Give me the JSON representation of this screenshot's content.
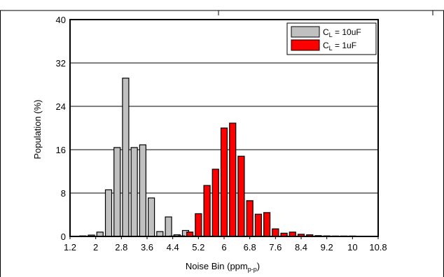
{
  "chart_data": {
    "type": "bar",
    "xlabel": "Noise Bin (ppm",
    "xlabel_sub": "p-p",
    "xlabel_close": ")",
    "ylabel": "Population (%)",
    "ylim": [
      0,
      40
    ],
    "yticks": [
      "0",
      "8",
      "16",
      "24",
      "32",
      "40"
    ],
    "xlim": [
      1.2,
      10.8
    ],
    "xticks": [
      "1.2",
      "2",
      "2.8",
      "3.6",
      "4.4",
      "5.2",
      "6",
      "6.8",
      "7.6",
      "8.4",
      "9.2",
      "10",
      "10.8"
    ],
    "grid": "horizontal",
    "legend_position": "top-right",
    "series": [
      {
        "name_main": "C",
        "name_sub": "L",
        "name_rest": " = 10uF",
        "color": "#c0c0c0",
        "x": [
          1.6,
          1.867,
          2.133,
          2.4,
          2.667,
          2.933,
          3.2,
          3.467,
          3.733,
          4.0,
          4.267,
          4.533,
          4.8,
          5.067
        ],
        "values": [
          0.1,
          0.25,
          0.8,
          8.6,
          16.4,
          29.2,
          16.4,
          16.9,
          7.1,
          0.9,
          3.6,
          0.3,
          1.1,
          0.1
        ]
      },
      {
        "name_main": "C",
        "name_sub": "L",
        "name_rest": " = 1uF",
        "color": "#ff0000",
        "x": [
          4.4,
          4.667,
          4.933,
          5.2,
          5.467,
          5.733,
          6.0,
          6.267,
          6.533,
          6.8,
          7.067,
          7.333,
          7.6,
          7.867,
          8.133,
          8.4,
          8.667,
          8.933,
          9.2,
          9.467,
          9.733,
          10.0
        ],
        "values": [
          0.05,
          0.1,
          0.8,
          4.2,
          9.4,
          12.4,
          20.0,
          20.9,
          14.8,
          6.6,
          4.1,
          4.4,
          1.4,
          0.6,
          0.8,
          0.4,
          0.3,
          0.15,
          0.1,
          0.05,
          0.05,
          0.02
        ]
      }
    ]
  }
}
